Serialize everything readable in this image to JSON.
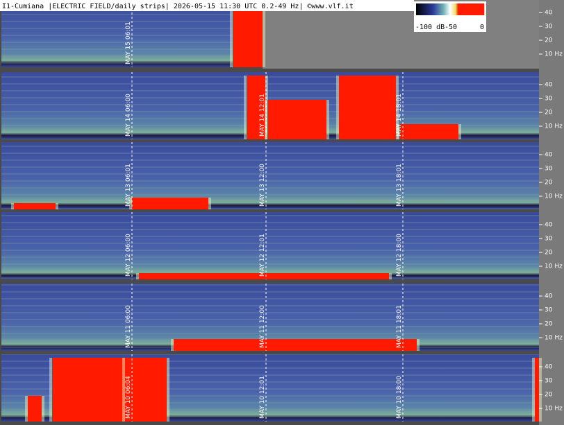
{
  "header": {
    "title": "I1-Cumiana |ELECTRIC FIELD/daily strips| 2026-05-15 11:30 UTC 0.2-49 Hz| ©www.vlf.it"
  },
  "colorbar": {
    "labels": [
      "-100 dB",
      "-50",
      "0"
    ]
  },
  "freq_labels": [
    "40",
    "30",
    "20",
    "10 Hz"
  ],
  "strips": [
    {
      "time_labels": [
        "MAY 15  06:01"
      ]
    },
    {
      "time_labels": [
        "MAY 14  06:00",
        "MAY 14  12:01",
        "MAY 14  18:01"
      ]
    },
    {
      "time_labels": [
        "MAY 13  06:01",
        "MAY 13  12:00",
        "MAY 13  18:01"
      ]
    },
    {
      "time_labels": [
        "MAY 12  06:00",
        "MAY 12  12:01",
        "MAY 12  18:00"
      ]
    },
    {
      "time_labels": [
        "MAY 11  06:00",
        "MAY 11  12:00",
        "MAY 11  18:01"
      ]
    },
    {
      "time_labels": [
        "MAY 10  06:04",
        "MAY 10  12:01",
        "MAY 10  18:00"
      ]
    }
  ]
}
